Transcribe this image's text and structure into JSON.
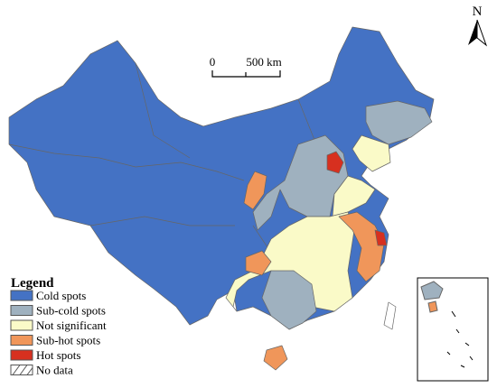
{
  "map": {
    "north": "N",
    "scale": {
      "start": "0",
      "end": "500 km"
    },
    "legend": {
      "title": "Legend",
      "items": [
        {
          "label": "Cold spots",
          "color": "#4472c4"
        },
        {
          "label": "Sub-cold spots",
          "color": "#9fb1bf"
        },
        {
          "label": "Not significant",
          "color": "#fafac8"
        },
        {
          "label": "Sub-hot spots",
          "color": "#f0965a"
        },
        {
          "label": "Hot spots",
          "color": "#d7301f"
        },
        {
          "label": "No data",
          "color": "#ffffff"
        }
      ]
    }
  }
}
